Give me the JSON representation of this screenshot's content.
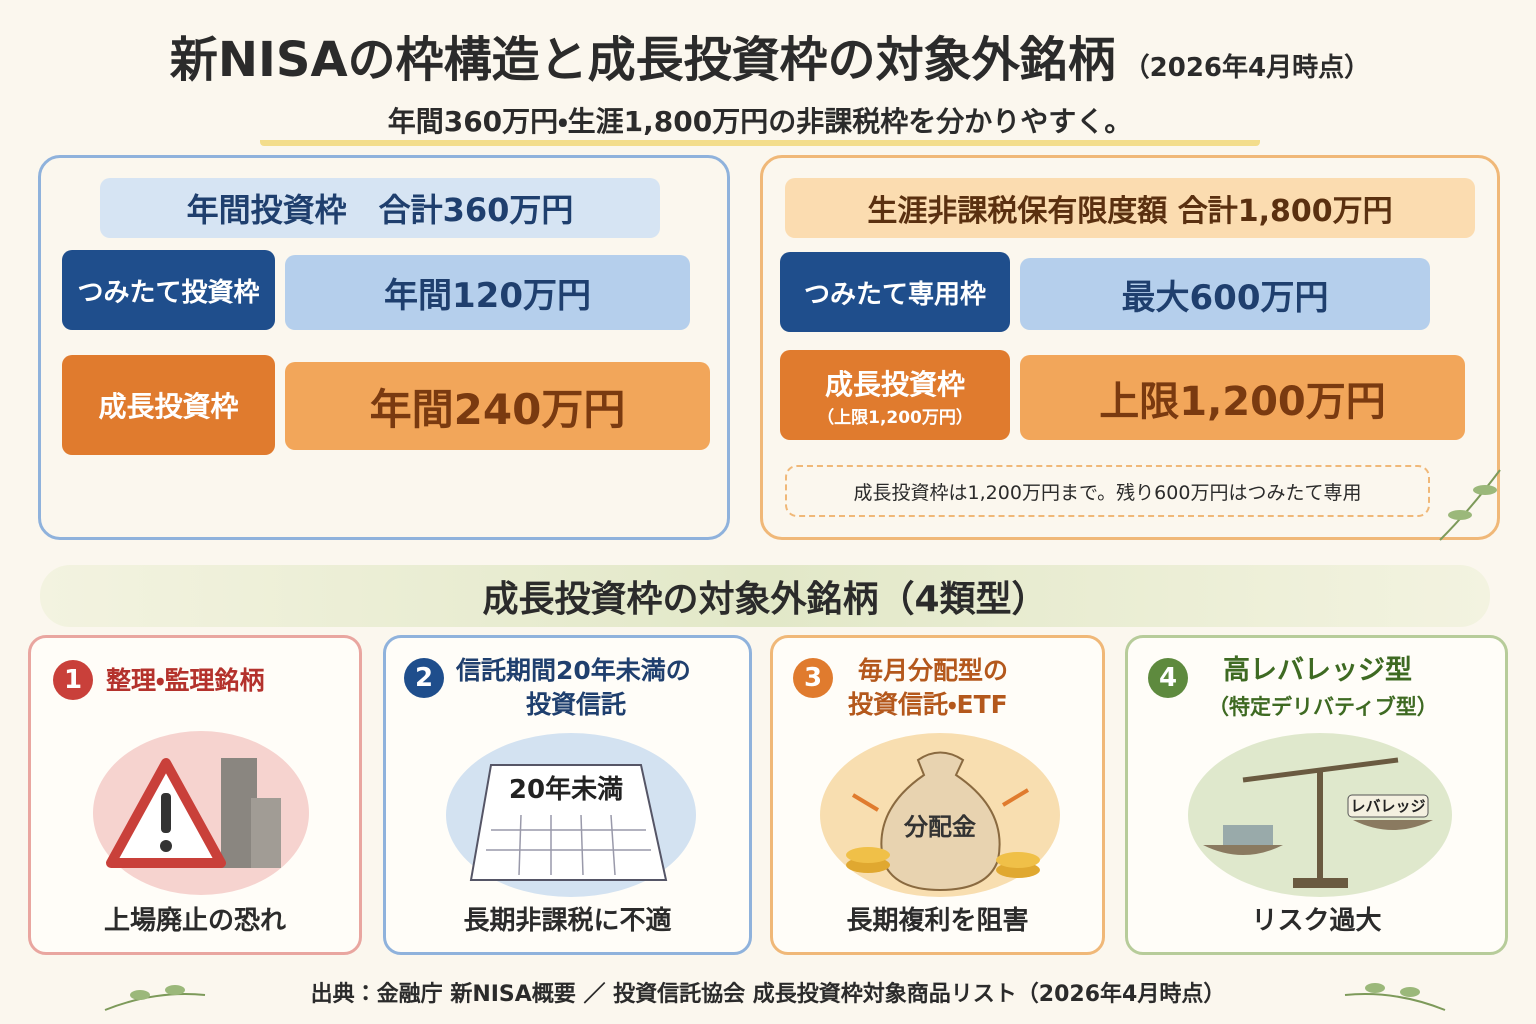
{
  "header": {
    "title": "新NISAの枠構造と成長投資枠の対象外銘柄",
    "date": "（2026年4月時点）",
    "subtitle": "年間360万円・生涯1,800万円の非課税枠を分かりやすく。"
  },
  "annual": {
    "title": "年間投資枠　合計360万円",
    "rows": [
      {
        "label": "つみたて投資枠",
        "value": "年間120万円"
      },
      {
        "label": "成長投資枠",
        "value": "年間240万円"
      }
    ]
  },
  "lifetime": {
    "title": "生涯非課税保有限度額 合計1,800万円",
    "rows": [
      {
        "label": "つみたて専用枠",
        "value": "最大600万円"
      },
      {
        "label": "成長投資枠",
        "sublabel": "（上限1,200万円）",
        "value": "上限1,200万円"
      }
    ],
    "note": "成長投資枠は1,200万円まで。残り600万円はつみたて専用"
  },
  "excluded": {
    "title": "成長投資枠の対象外銘柄（4類型）",
    "items": [
      {
        "number": "1",
        "title_lines": [
          "整理・監理銘柄"
        ],
        "caption": "上場廃止の恐れ"
      },
      {
        "number": "2",
        "title_lines": [
          "信託期間20年未満の",
          "投資信託"
        ],
        "icon_text": "20年未満",
        "caption": "長期非課税に不適"
      },
      {
        "number": "3",
        "title_lines": [
          "毎月分配型の",
          "投資信託・ETF"
        ],
        "icon_text": "分配金",
        "caption": "長期複利を阻害"
      },
      {
        "number": "4",
        "title_lines": [
          "高レバレッジ型",
          "（特定デリバティブ型）"
        ],
        "icon_text": "レバレッジ",
        "caption": "リスク過大"
      }
    ]
  },
  "source": "出典：金融庁 新NISA概要 ／ 投資信託協会 成長投資枠対象商品リスト（2026年4月時点）"
}
